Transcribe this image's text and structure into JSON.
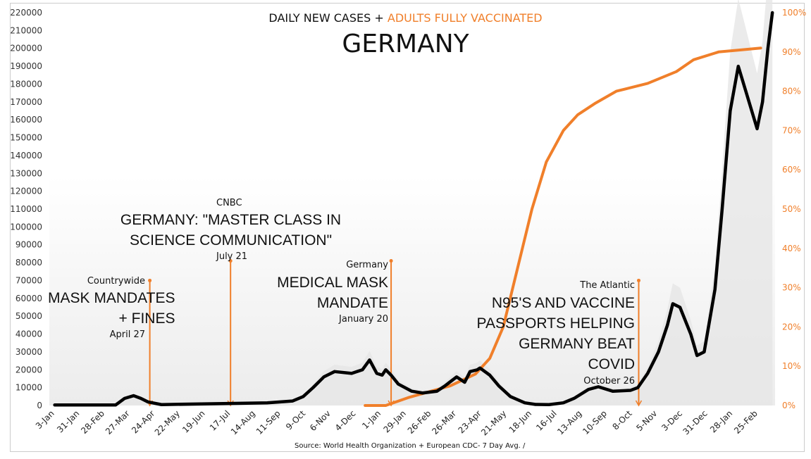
{
  "colors": {
    "cases": "#000000",
    "vaccinated": "#f07f2a",
    "bars": "#e6e6e6"
  },
  "chart_data": {
    "type": "line",
    "title": "GERMANY",
    "subtitle": {
      "part1": "DAILY NEW CASES + ",
      "part2": "ADULTS FULLY VACCINATED"
    },
    "x_unit": "days since 3-Jan-2020",
    "xlim": [
      -6,
      803
    ],
    "x_tick_labels": [
      "3-Jan",
      "31-Jan",
      "28-Feb",
      "27-Mar",
      "24-Apr",
      "22-May",
      "19-Jun",
      "17-Jul",
      "14-Aug",
      "11-Sep",
      "9-Oct",
      "6-Nov",
      "4-Dec",
      "1-Jan",
      "29-Jan",
      "26-Feb",
      "26-Mar",
      "23-Apr",
      "21-May",
      "18-Jun",
      "16-Jul",
      "13-Aug",
      "10-Sep",
      "8-Oct",
      "5-Nov",
      "3-Dec",
      "31-Dec",
      "28-Jan",
      "25-Feb"
    ],
    "x_tick_step_days": 28,
    "y_left": {
      "lim": [
        0,
        220000
      ],
      "ticks": [
        "0",
        "10000",
        "20000",
        "30000",
        "40000",
        "50000",
        "60000",
        "70000",
        "80000",
        "90000",
        "100000",
        "110000",
        "120000",
        "130000",
        "140000",
        "150000",
        "160000",
        "170000",
        "180000",
        "190000",
        "200000",
        "210000",
        "220000"
      ]
    },
    "y_right": {
      "lim": [
        0,
        100
      ],
      "ticks": [
        "0%",
        "10%",
        "20%",
        "30%",
        "40%",
        "50%",
        "60%",
        "70%",
        "80%",
        "90%",
        "100%"
      ]
    },
    "series": [
      {
        "name": "Daily new cases (7 day avg)",
        "axis": "left",
        "x": [
          0,
          68,
          78,
          88,
          96,
          104,
          119,
          237,
          265,
          277,
          288,
          300,
          312,
          331,
          343,
          351,
          359,
          365,
          369,
          375,
          383,
          398,
          410,
          426,
          435,
          448,
          457,
          463,
          471,
          474,
          485,
          495,
          508,
          524,
          536,
          551,
          567,
          579,
          595,
          606,
          622,
          642,
          650,
          661,
          673,
          683,
          689,
          697,
          709,
          716,
          724,
          736,
          744,
          753,
          762,
          771,
          783,
          789,
          795,
          800
        ],
        "y": [
          300,
          300,
          4000,
          5500,
          4000,
          2000,
          500,
          1500,
          2500,
          5000,
          10000,
          16000,
          19000,
          18000,
          20000,
          25500,
          18000,
          17000,
          20000,
          17000,
          12000,
          8000,
          7000,
          8000,
          11000,
          16000,
          13000,
          19000,
          20000,
          21000,
          17000,
          11000,
          5000,
          1500,
          600,
          500,
          1500,
          4000,
          9000,
          10500,
          8000,
          8500,
          10000,
          18000,
          30000,
          45000,
          57000,
          55000,
          40000,
          28000,
          30000,
          65000,
          110000,
          165000,
          190000,
          175000,
          155000,
          170000,
          200000,
          220000
        ]
      },
      {
        "name": "Adults fully vaccinated (%)",
        "axis": "right",
        "x": [
          346,
          369,
          394,
          441,
          469,
          485,
          500,
          516,
          532,
          548,
          567,
          583,
          603,
          626,
          661,
          693,
          712,
          740,
          764,
          787
        ],
        "y": [
          0,
          0,
          2,
          5,
          8,
          12,
          20,
          35,
          50,
          62,
          70,
          74,
          77,
          80,
          82,
          85,
          88,
          90,
          90.5,
          91
        ]
      }
    ],
    "annotations": [
      {
        "day": 106,
        "top_pct_left": 70000,
        "source": "Countrywide",
        "headline": [
          "MASK MANDATES",
          "+ FINES"
        ],
        "date": "April 27"
      },
      {
        "day": 196,
        "top_pct_left": 81000,
        "source": "CNBC",
        "headline": [
          "GERMANY: \"MASTER CLASS IN",
          "SCIENCE COMMUNICATION\""
        ],
        "date": "July 21"
      },
      {
        "day": 375,
        "top_pct_left": 81000,
        "source": "Germany",
        "headline": [
          "MEDICAL MASK",
          "MANDATE"
        ],
        "date": "January 20"
      },
      {
        "day": 651,
        "top_pct_left": 70000,
        "source": "The Atlantic",
        "headline": [
          "N95'S AND VACCINE",
          "PASSPORTS HELPING",
          "GERMANY BEAT",
          "COVID"
        ],
        "date": "October 26"
      }
    ],
    "source": "Source: World Health Organization + European CDC- 7 Day Avg. /"
  }
}
